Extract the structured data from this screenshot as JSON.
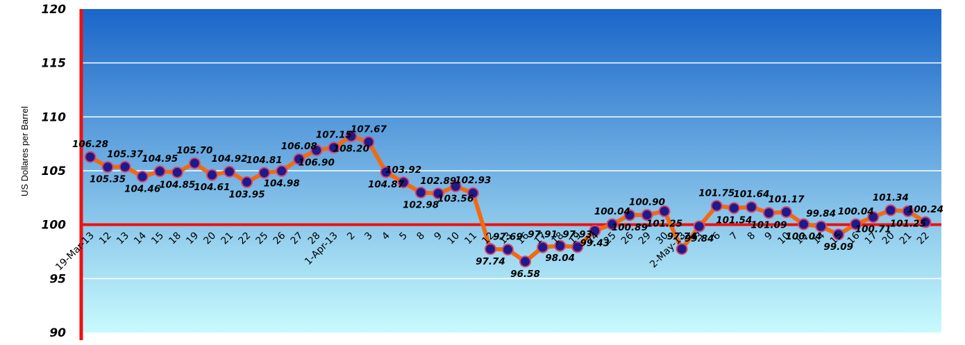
{
  "chart_data": {
    "type": "line",
    "title": "",
    "xlabel": "",
    "ylabel": "US  Dollares per Barrel",
    "ylim": [
      90,
      120
    ],
    "yticks": [
      "90",
      "95",
      "100",
      "105",
      "110",
      "115",
      "120"
    ],
    "categories": [
      "19-Mar-13",
      "12",
      "13",
      "14",
      "15",
      "18",
      "19",
      "20",
      "21",
      "22",
      "25",
      "26",
      "27",
      "28",
      "1-Apr-13",
      "2",
      "3",
      "4",
      "5",
      "8",
      "9",
      "10",
      "11",
      "12",
      "13",
      "16",
      "17",
      "18",
      "19",
      "24",
      "25",
      "26",
      "29",
      "30",
      "2-May-13",
      "3",
      "6",
      "7",
      "8",
      "9",
      "10",
      "13",
      "14",
      "15",
      "16",
      "17",
      "20",
      "21",
      "22"
    ],
    "series": [
      {
        "values": [
          106.28,
          105.35,
          105.37,
          104.46,
          104.95,
          104.85,
          105.7,
          104.61,
          104.92,
          103.95,
          104.81,
          104.98,
          106.08,
          106.9,
          107.15,
          108.2,
          107.67,
          104.87,
          103.92,
          102.98,
          102.89,
          103.56,
          102.93,
          97.74,
          97.69,
          96.58,
          97.91,
          98.04,
          97.93,
          99.43,
          100.04,
          100.89,
          100.9,
          101.25,
          97.74,
          99.84,
          101.75,
          101.54,
          101.64,
          101.09,
          101.17,
          100.04,
          99.84,
          99.09,
          100.04,
          100.71,
          101.34,
          101.25,
          100.24
        ],
        "labels": [
          "106.28",
          "105.35",
          "105.37",
          "104.46",
          "104.95",
          "104.85",
          "105.70",
          "104.61",
          "104.92",
          "103.95",
          "104.81",
          "104.98",
          "106.08",
          "106.90",
          "107.15",
          "108.20",
          "107.67",
          "104.87",
          "103.92",
          "102.98",
          "102.89",
          "103.56",
          "102.93",
          "97.74",
          "97.69",
          "96.58",
          "97.91",
          "98.04",
          "97.93",
          "99.43",
          "100.04",
          "100.89",
          "100.90",
          "101.25",
          "97.74",
          "99.84",
          "101.75",
          "101.54",
          "101.64",
          "101.09",
          "101.17",
          "100.04",
          "99.84",
          "99.09",
          "100.04",
          "100.71",
          "101.34",
          "101.25",
          "100.24"
        ]
      }
    ],
    "reference_line": 100,
    "grid": true,
    "colors": {
      "line": "#f26a10",
      "marker_fill": "#1f1a8a",
      "marker_edge": "#d9476e",
      "axis": "#ee1111",
      "grid": "#ffffff",
      "bg_top": "#1a66c9",
      "bg_bottom": "#c8fbfd"
    }
  }
}
